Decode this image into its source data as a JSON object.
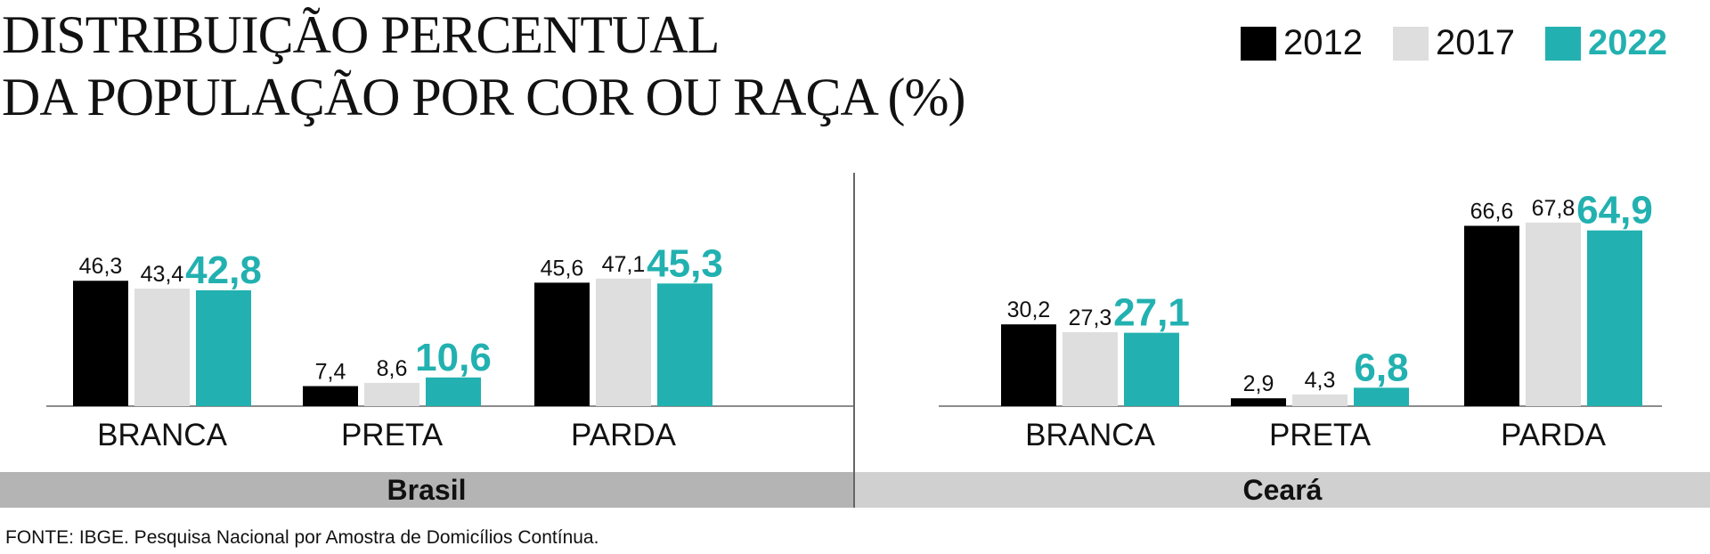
{
  "title": {
    "line1": "DISTRIBUIÇÃO PERCENTUAL",
    "line2": "DA POPULAÇÃO POR COR OU RAÇA (%)"
  },
  "legend": [
    {
      "label": "2012",
      "color": "#000000"
    },
    {
      "label": "2017",
      "color": "#dedede"
    },
    {
      "label": "2022",
      "color": "#22b1b0",
      "highlight": true
    }
  ],
  "chart_data": [
    {
      "type": "bar",
      "title": "Brasil",
      "categories": [
        "BRANCA",
        "PRETA",
        "PARDA"
      ],
      "series": [
        {
          "name": "2012",
          "values": [
            46.3,
            7.4,
            45.6
          ],
          "labels": [
            "46,3",
            "7,4",
            "45,6"
          ]
        },
        {
          "name": "2017",
          "values": [
            43.4,
            8.6,
            47.1
          ],
          "labels": [
            "43,4",
            "8,6",
            "47,1"
          ]
        },
        {
          "name": "2022",
          "values": [
            42.8,
            10.6,
            45.3
          ],
          "labels": [
            "42,8",
            "10,6",
            "45,3"
          ]
        }
      ],
      "grid": false,
      "legend_position": "top-right"
    },
    {
      "type": "bar",
      "title": "Ceará",
      "categories": [
        "BRANCA",
        "PRETA",
        "PARDA"
      ],
      "series": [
        {
          "name": "2012",
          "values": [
            30.2,
            2.9,
            66.6
          ],
          "labels": [
            "30,2",
            "2,9",
            "66,6"
          ]
        },
        {
          "name": "2017",
          "values": [
            27.3,
            4.3,
            67.8
          ],
          "labels": [
            "27,3",
            "4,3",
            "67,8"
          ]
        },
        {
          "name": "2022",
          "values": [
            27.1,
            6.8,
            64.9
          ],
          "labels": [
            "27,1",
            "6,8",
            "64,9"
          ]
        }
      ],
      "grid": false,
      "legend_position": "top-right"
    }
  ],
  "colors": {
    "series": [
      "#000000",
      "#dedede",
      "#22b1b0"
    ],
    "panel_left": "#b4b4b4",
    "panel_right": "#d0d0d0"
  },
  "source": "FONTE: IBGE. Pesquisa Nacional por Amostra de Domicílios Contínua."
}
